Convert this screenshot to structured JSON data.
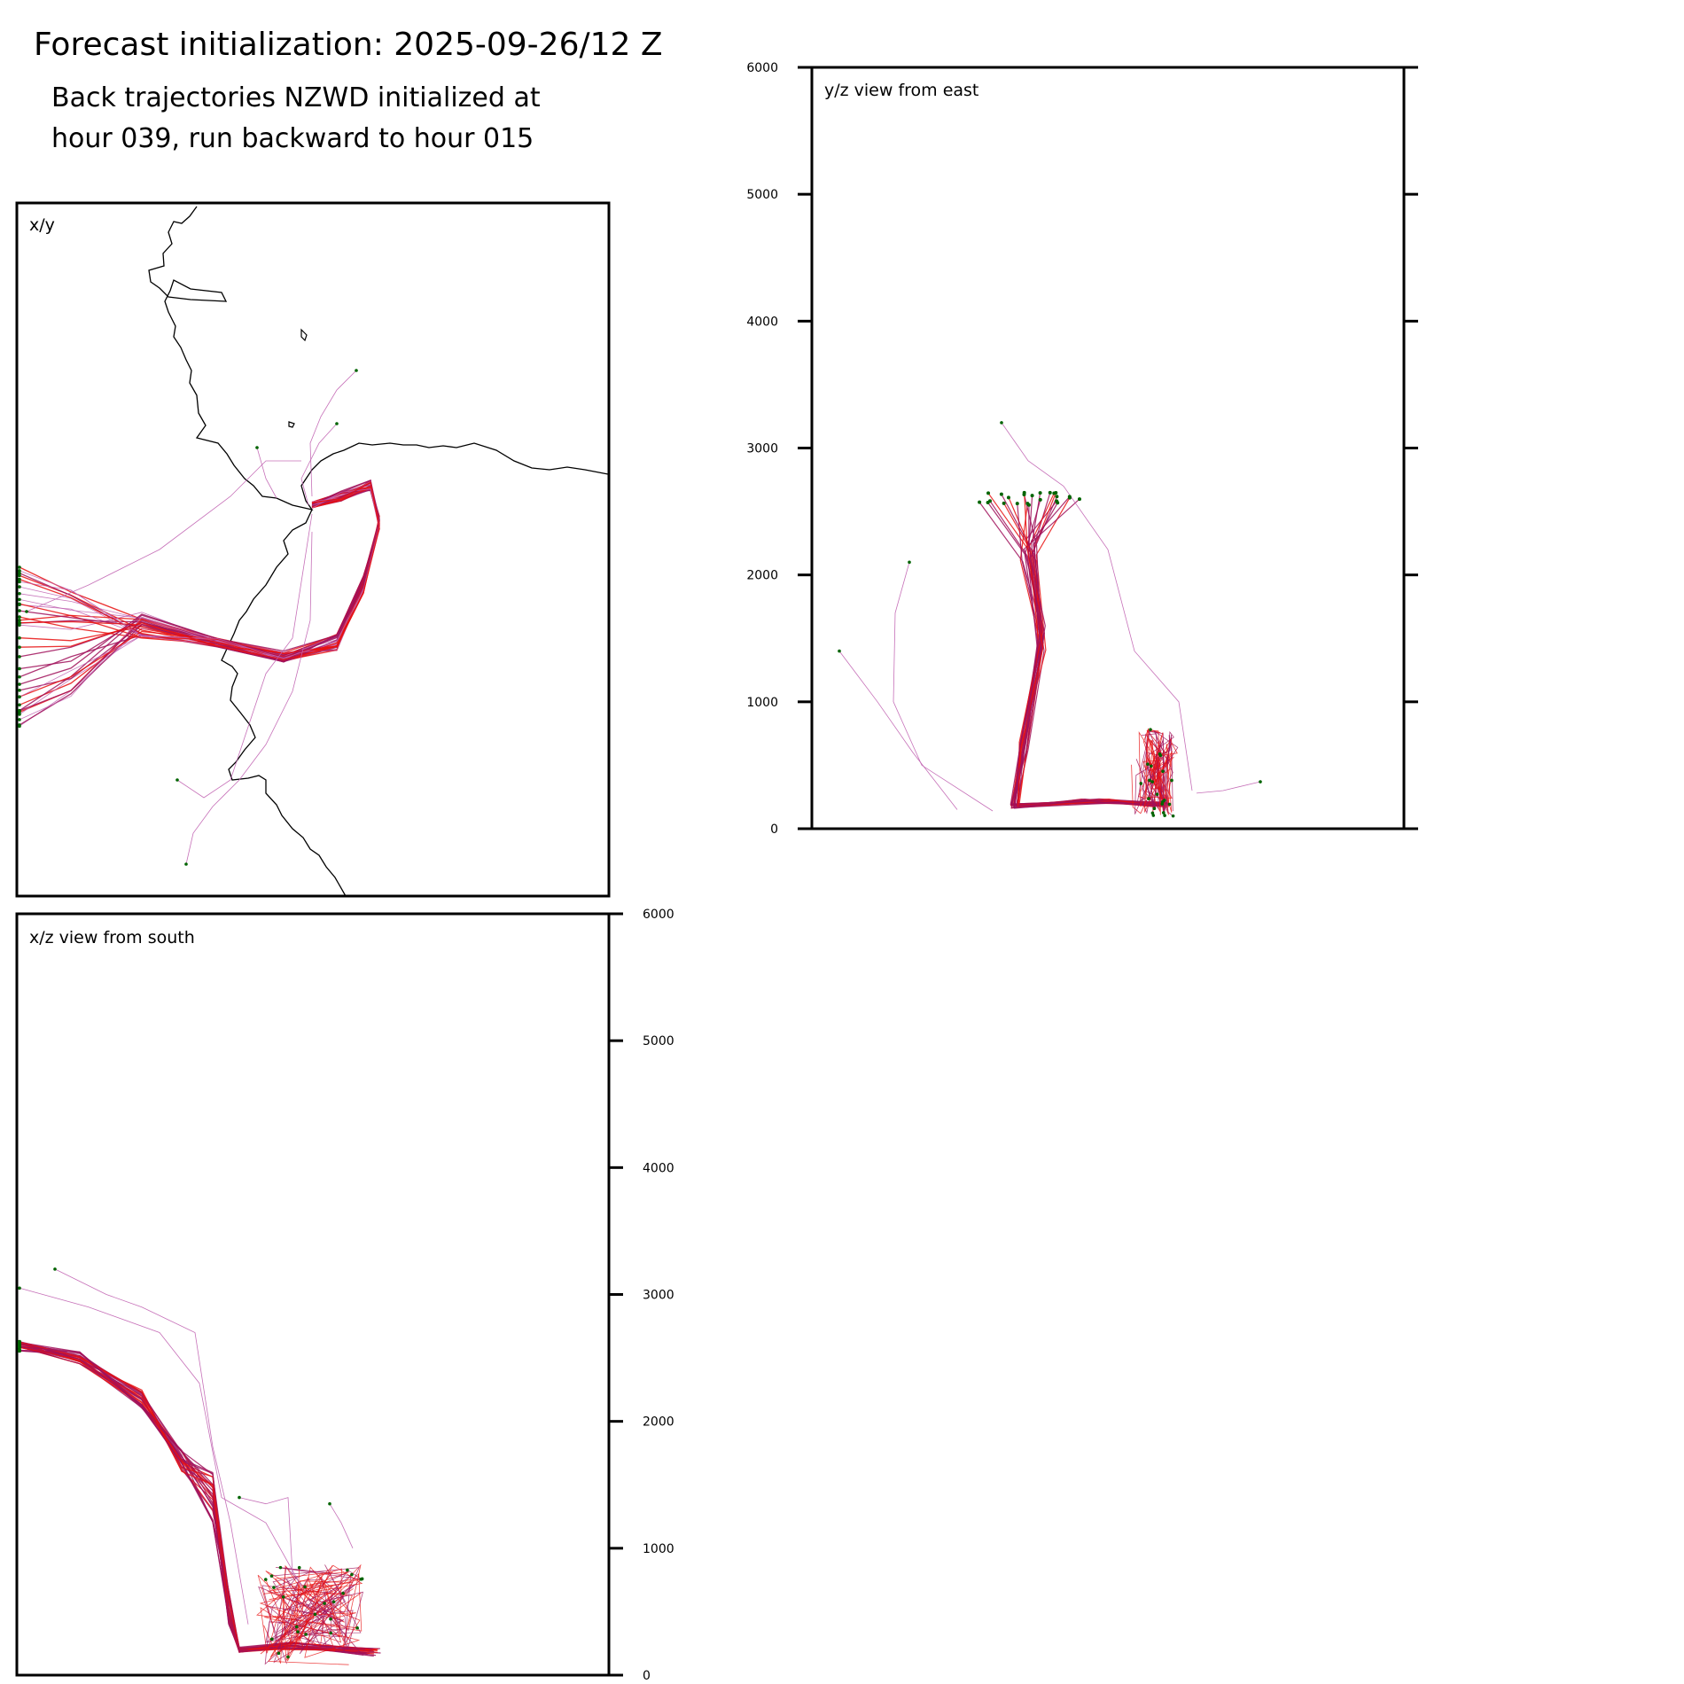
{
  "header": {
    "title": "Forecast initialization: 2025-09-26/12 Z",
    "subtitle_line1": "Back trajectories NZWD initialized at",
    "subtitle_line2": "hour 039, run backward to hour 015"
  },
  "colors": {
    "trajectory_dark": "#a0105a",
    "trajectory_light": "#c060b0",
    "trajectory_red": "#e81010",
    "endpoint": "#006400",
    "coastline": "#000000"
  },
  "chart_data": [
    {
      "type": "line",
      "panel": "xy",
      "label": "x/y",
      "description_of_series": "map view of back trajectories with coastline"
    },
    {
      "type": "line",
      "panel": "yz",
      "label": "y/z view from east",
      "ylim": [
        0,
        6000
      ],
      "yticks": [
        "0",
        "1000",
        "2000",
        "3000",
        "4000",
        "5000",
        "6000"
      ]
    },
    {
      "type": "line",
      "panel": "xz",
      "label": "x/z view from south",
      "ylim": [
        0,
        6000
      ],
      "yticks": [
        "0",
        "1000",
        "2000",
        "3000",
        "4000",
        "5000",
        "6000"
      ]
    }
  ]
}
